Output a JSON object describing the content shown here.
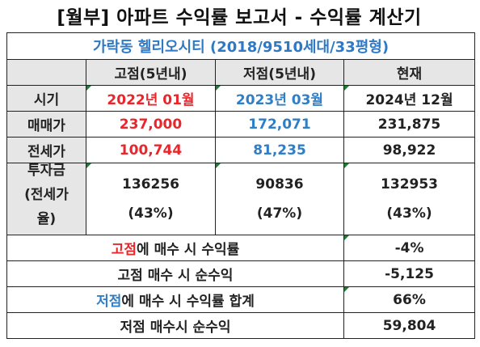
{
  "title": "[월부] 아파트 수익률 보고서 - 수익률 계산기",
  "subtitle": "가락동 헬리오시티 (2018/9510세대/33평형)",
  "header": {
    "corner": "",
    "high": "고점(5년내)",
    "low": "저점(5년내)",
    "now": "현재"
  },
  "rows": [
    {
      "label": "시기",
      "high": "2022년 01월",
      "low": "2023년 03월",
      "now": "2024년 12월"
    },
    {
      "label": "매매가",
      "high": "237,000",
      "low": "172,071",
      "now": "231,875"
    },
    {
      "label": "전세가",
      "high": "100,744",
      "low": "81,235",
      "now": "98,922"
    }
  ],
  "investment": {
    "label_line1": "투자금",
    "label_line2": "(전세가",
    "label_line3": "율)",
    "high_amount": "136256",
    "high_ratio": "(43%)",
    "low_amount": "90836",
    "low_ratio": "(47%)",
    "now_amount": "132953",
    "now_ratio": "(43%)"
  },
  "summary": [
    {
      "highlight": "고점",
      "rest": "에 매수 시 수익률",
      "value": "-4%"
    },
    {
      "highlight": "",
      "rest": "고점 매수 시 순수익",
      "value": "-5,125"
    },
    {
      "highlight": "저점",
      "rest": "에 매수 시 수익률 합계",
      "value": "66%"
    },
    {
      "highlight": "",
      "rest": "저점 매수시 순수익",
      "value": "59,804"
    }
  ],
  "colors": {
    "high": "#e8262b",
    "low": "#2f7ec6",
    "header_bg": "#e6e6e6",
    "comment_marker": "#1e7b34"
  }
}
